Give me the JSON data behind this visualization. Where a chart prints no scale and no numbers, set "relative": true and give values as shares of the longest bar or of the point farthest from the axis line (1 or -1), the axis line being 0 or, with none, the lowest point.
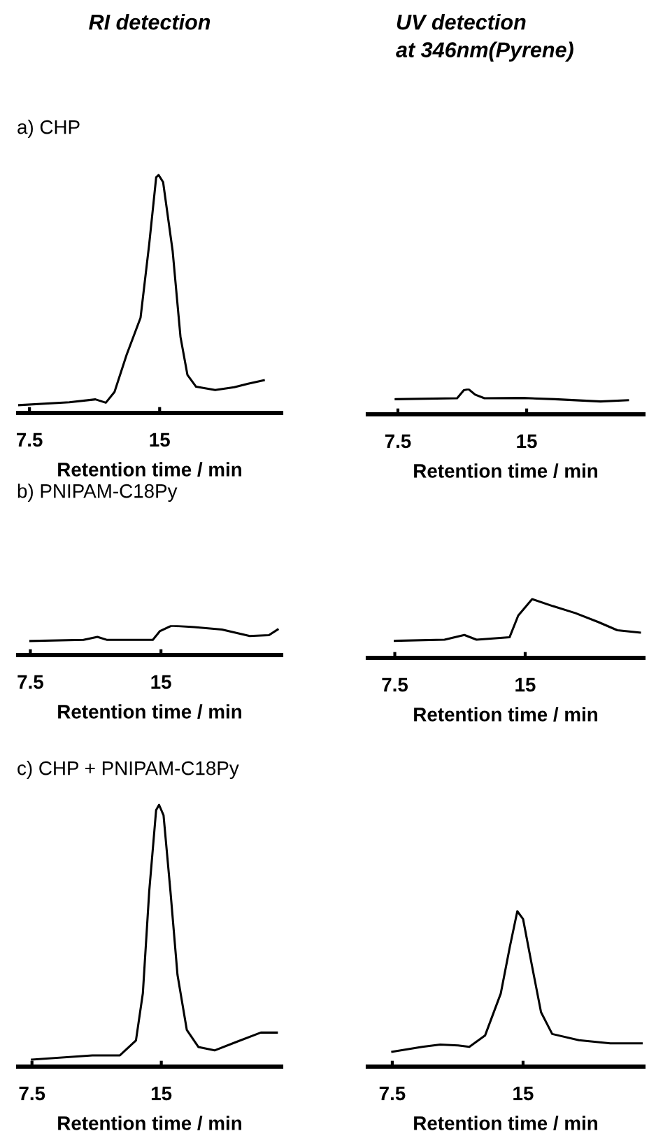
{
  "chart_data": [
    {
      "type": "line",
      "title": "RI detection",
      "subtitle": "a) CHP",
      "xlabel": "Retention time / min",
      "relative": true,
      "xlim": [
        6.85,
        22.0
      ],
      "xticks": [
        7.5,
        15
      ],
      "tick_labels": "x",
      "grid": false,
      "legend": false,
      "color": "#000000",
      "x": [
        6.9,
        9.8,
        11.3,
        11.9,
        12.4,
        13.1,
        13.9,
        14.4,
        14.8,
        14.94,
        15.2,
        15.75,
        16.2,
        16.6,
        17.1,
        18.2,
        19.3,
        20.1,
        21.0
      ],
      "values": [
        0.033,
        0.045,
        0.057,
        0.043,
        0.088,
        0.245,
        0.4,
        0.71,
        0.99,
        1.0,
        0.97,
        0.68,
        0.32,
        0.16,
        0.11,
        0.096,
        0.108,
        0.123,
        0.137
      ]
    },
    {
      "type": "line",
      "title": "UV detection\nat 346nm(Pyrene)",
      "xlabel": "Retention time / min",
      "relative": true,
      "xlim": [
        5.75,
        21.8
      ],
      "xticks": [
        7.5,
        15
      ],
      "tick_labels": "x",
      "grid": false,
      "legend": false,
      "color": "#000000",
      "x": [
        7.37,
        10.95,
        11.34,
        11.61,
        12.0,
        12.54,
        14.79,
        16.64,
        19.3,
        20.9
      ],
      "values": [
        0.6,
        0.64,
        0.96,
        1.0,
        0.78,
        0.64,
        0.65,
        0.6,
        0.51,
        0.56
      ]
    },
    {
      "type": "line",
      "subtitle": "b) PNIPAM-C18Py",
      "xlabel": "Retention time / min",
      "relative": true,
      "xlim": [
        6.8,
        21.9
      ],
      "xticks": [
        7.5,
        15
      ],
      "tick_labels": "x",
      "grid": false,
      "legend": false,
      "color": "#000000",
      "x": [
        7.5,
        10.55,
        11.35,
        11.88,
        14.53,
        14.93,
        15.6,
        16.9,
        18.5,
        20.1,
        21.2,
        21.7
      ],
      "values": [
        0.48,
        0.52,
        0.62,
        0.52,
        0.52,
        0.81,
        1.0,
        0.95,
        0.87,
        0.65,
        0.68,
        0.87
      ]
    },
    {
      "type": "line",
      "xlabel": "Retention time / min",
      "relative": true,
      "xlim": [
        5.95,
        21.8
      ],
      "xticks": [
        7.5,
        15
      ],
      "tick_labels": "x",
      "grid": false,
      "legend": false,
      "color": "#000000",
      "x": [
        7.5,
        10.36,
        11.5,
        12.2,
        14.1,
        14.6,
        15.4,
        16.6,
        17.9,
        19.2,
        20.3,
        21.6
      ],
      "values": [
        0.29,
        0.31,
        0.39,
        0.31,
        0.35,
        0.72,
        1.0,
        0.88,
        0.76,
        0.61,
        0.47,
        0.43
      ]
    },
    {
      "type": "line",
      "subtitle": "c) CHP + PNIPAM-C18Py",
      "xlabel": "Retention time / min",
      "relative": true,
      "xlim": [
        6.7,
        21.95
      ],
      "xticks": [
        7.5,
        15
      ],
      "tick_labels": "x",
      "grid": false,
      "legend": false,
      "color": "#000000",
      "x": [
        7.5,
        11.0,
        12.6,
        13.53,
        13.93,
        14.3,
        14.7,
        14.87,
        15.13,
        15.53,
        15.94,
        16.48,
        17.15,
        18.09,
        19.3,
        20.77,
        21.7
      ],
      "values": [
        0.027,
        0.043,
        0.043,
        0.1,
        0.28,
        0.67,
        0.98,
        1.0,
        0.96,
        0.67,
        0.35,
        0.14,
        0.075,
        0.062,
        0.093,
        0.13,
        0.13
      ]
    },
    {
      "type": "line",
      "xlabel": "Retention time / min",
      "relative": true,
      "xlim": [
        6.1,
        21.9
      ],
      "xticks": [
        7.5,
        15
      ],
      "tick_labels": "x",
      "grid": false,
      "legend": false,
      "color": "#000000",
      "x": [
        7.5,
        9.22,
        10.25,
        11.28,
        11.92,
        12.82,
        13.72,
        14.24,
        14.67,
        15.0,
        15.51,
        16.03,
        16.67,
        18.2,
        20.0,
        21.8
      ],
      "values": [
        0.096,
        0.127,
        0.142,
        0.136,
        0.127,
        0.2,
        0.47,
        0.77,
        1.0,
        0.95,
        0.65,
        0.35,
        0.21,
        0.17,
        0.15,
        0.15
      ]
    }
  ]
}
